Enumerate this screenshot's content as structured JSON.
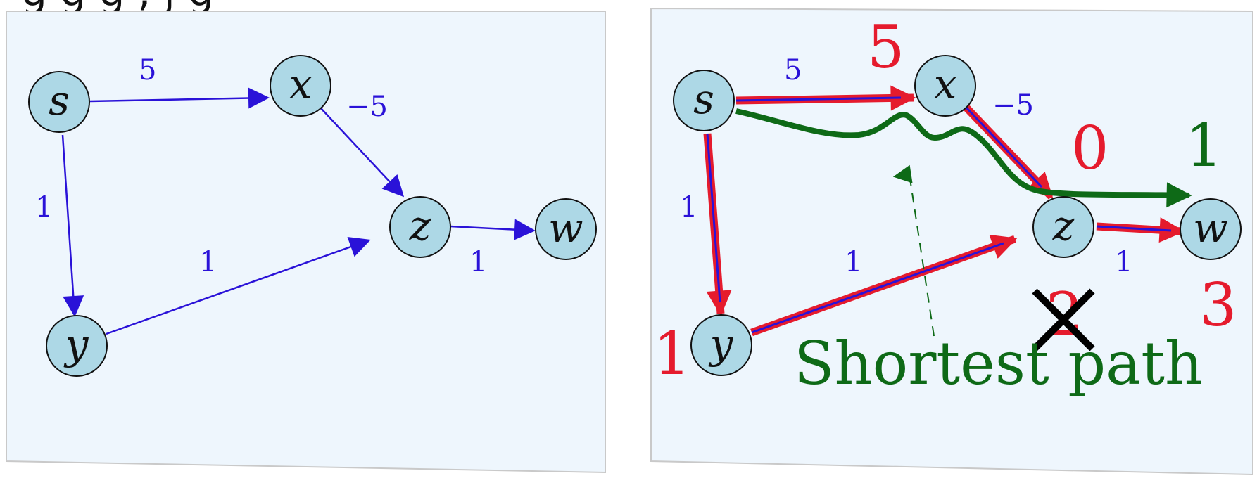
{
  "top_text": "g      g   g ,    j        g",
  "graph": {
    "nodes": [
      {
        "id": "s",
        "label": "s"
      },
      {
        "id": "x",
        "label": "x"
      },
      {
        "id": "y",
        "label": "y"
      },
      {
        "id": "z",
        "label": "z"
      },
      {
        "id": "w",
        "label": "w"
      }
    ],
    "edges": [
      {
        "from": "s",
        "to": "x",
        "weight": "5"
      },
      {
        "from": "x",
        "to": "z",
        "weight": "−5"
      },
      {
        "from": "s",
        "to": "y",
        "weight": "1"
      },
      {
        "from": "y",
        "to": "z",
        "weight": "1"
      },
      {
        "from": "z",
        "to": "w",
        "weight": "1"
      }
    ]
  },
  "right_panel": {
    "distances": {
      "s_to_x": "5",
      "y": "1",
      "z_crossed": "2",
      "z_new": "0",
      "w": "3",
      "w_green": "1"
    },
    "shortest_path_label": "Shortest path"
  },
  "colors": {
    "panel_bg": "#eef6fd",
    "panel_border": "#c9c9c9",
    "node_fill": "#add8e6",
    "edge_blue": "#2a12d8",
    "highlight_red": "#e51b2d",
    "path_green": "#0e6a17",
    "cross_black": "#000000"
  }
}
